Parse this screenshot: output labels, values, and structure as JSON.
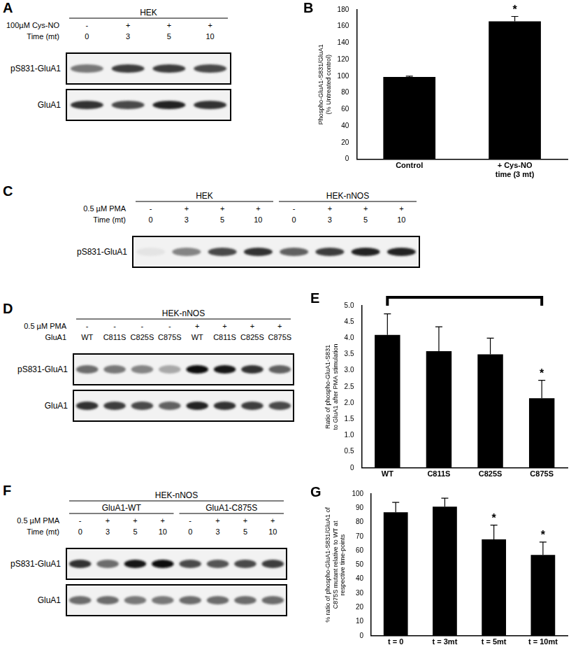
{
  "blots": [
    {
      "panel": "A",
      "group_levels": [
        [
          {
            "text": "HEK",
            "lanes": 4
          }
        ]
      ],
      "rows": [
        {
          "label": "100µM Cys-NO",
          "values": [
            "-",
            "+",
            "+",
            "+"
          ]
        },
        {
          "label": "Time (mt)",
          "values": [
            "0",
            "3",
            "5",
            "10"
          ]
        }
      ],
      "bands": [
        {
          "label": "pS831-GluA1",
          "intensity": [
            0.5,
            0.75,
            0.75,
            0.7
          ]
        },
        {
          "label": "GluA1",
          "intensity": [
            0.8,
            0.7,
            0.85,
            0.8
          ]
        }
      ]
    },
    {
      "panel": "C",
      "group_levels": [
        [
          {
            "text": "HEK",
            "lanes": 4
          },
          {
            "text": "HEK-nNOS",
            "lanes": 4
          }
        ]
      ],
      "rows": [
        {
          "label": "0.5 µM PMA",
          "values": [
            "-",
            "+",
            "+",
            "+",
            "-",
            "+",
            "+",
            "+"
          ]
        },
        {
          "label": "Time (mt)",
          "values": [
            "0",
            "3",
            "5",
            "10",
            "0",
            "3",
            "5",
            "10"
          ]
        }
      ],
      "bands": [
        {
          "label": "pS831-GluA1",
          "intensity": [
            0.05,
            0.45,
            0.7,
            0.8,
            0.6,
            0.75,
            0.85,
            0.85
          ]
        }
      ]
    },
    {
      "panel": "D",
      "group_levels": [
        [
          {
            "text": "HEK-nNOS",
            "lanes": 8
          }
        ]
      ],
      "rows": [
        {
          "label": "0.5 µM PMA",
          "values": [
            "-",
            "-",
            "-",
            "-",
            "+",
            "+",
            "+",
            "+"
          ]
        },
        {
          "label": "GluA1",
          "values": [
            "WT",
            "C811S",
            "C825S",
            "C875S",
            "WT",
            "C811S",
            "C825S",
            "C875S"
          ]
        }
      ],
      "bands": [
        {
          "label": "pS831-GluA1",
          "intensity": [
            0.55,
            0.5,
            0.45,
            0.3,
            0.95,
            0.9,
            0.8,
            0.6
          ]
        },
        {
          "label": "GluA1",
          "intensity": [
            0.8,
            0.75,
            0.7,
            0.6,
            0.85,
            0.8,
            0.75,
            0.7
          ]
        }
      ]
    },
    {
      "panel": "F",
      "group_levels": [
        [
          {
            "text": "HEK-nNOS",
            "lanes": 8
          }
        ],
        [
          {
            "text": "GluA1-WT",
            "lanes": 4
          },
          {
            "text": "GluA1-C875S",
            "lanes": 4
          }
        ]
      ],
      "rows": [
        {
          "label": "0.5 µM PMA",
          "values": [
            "-",
            "+",
            "+",
            "+",
            "-",
            "+",
            "+",
            "+"
          ]
        },
        {
          "label": "Time (mt)",
          "values": [
            "0",
            "3",
            "5",
            "10",
            "0",
            "3",
            "5",
            "10"
          ]
        }
      ],
      "bands": [
        {
          "label": "pS831-GluA1",
          "intensity": [
            0.8,
            0.55,
            0.9,
            0.95,
            0.7,
            0.65,
            0.7,
            0.75
          ]
        },
        {
          "label": "GluA1",
          "intensity": [
            0.55,
            0.55,
            0.5,
            0.5,
            0.55,
            0.55,
            0.55,
            0.55
          ]
        }
      ]
    }
  ],
  "chart_data": [
    {
      "panel": "B",
      "type": "bar",
      "categories": [
        "Control",
        "+ Cys-NO\ntime (3 mt)"
      ],
      "values": [
        99,
        166
      ],
      "errors": [
        1,
        6
      ],
      "color": "#000000",
      "y_label": "Phospho-GluA1-S831/GluA1\n(% Untreated control)",
      "ylim": [
        0,
        180
      ],
      "yticks": [
        0,
        20,
        40,
        60,
        80,
        100,
        120,
        140,
        160,
        180
      ],
      "grid": false,
      "annotations": [
        {
          "text": "*",
          "category": "+ Cys-NO\ntime (3 mt)"
        }
      ]
    },
    {
      "panel": "E",
      "type": "bar",
      "categories": [
        "WT",
        "C811S",
        "C825S",
        "C875S"
      ],
      "values": [
        4.1,
        3.6,
        3.5,
        2.15
      ],
      "errors": [
        0.65,
        0.75,
        0.5,
        0.55
      ],
      "color": "#000000",
      "y_label": "Ratio of phospho-GluA1-S831\nto GluA1 after PMA stimulation",
      "ylim": [
        0,
        5
      ],
      "yticks": [
        0,
        0.5,
        {
          "value": 1,
          "label": "1.0"
        },
        1.5,
        {
          "value": 2,
          "label": "2.0"
        },
        2.5,
        {
          "value": 3,
          "label": "3.0"
        },
        3.5,
        {
          "value": 4,
          "label": "4.0"
        },
        4.5,
        {
          "value": 5,
          "label": "5.0"
        }
      ],
      "grid": false,
      "annotations": [
        {
          "text": "*",
          "category": "C875S",
          "bracket_from": "WT"
        }
      ]
    },
    {
      "panel": "G",
      "type": "bar",
      "categories": [
        "t = 0",
        "t = 3mt",
        "t = 5mt",
        "t = 10mt"
      ],
      "values": [
        87,
        91,
        68,
        57
      ],
      "errors": [
        7,
        6,
        10,
        9
      ],
      "color": "#000000",
      "y_label": "% ratio of phospho-GluA1-S831/GluA1 of\nC875S mutant relative to WT at\nrespective time-points",
      "ylim": [
        0,
        100
      ],
      "yticks": [
        0,
        10,
        20,
        30,
        40,
        50,
        60,
        70,
        80,
        90,
        100
      ],
      "grid": false,
      "annotations": [
        {
          "text": "*",
          "category": "t = 5mt"
        },
        {
          "text": "*",
          "category": "t = 10mt"
        }
      ]
    }
  ]
}
